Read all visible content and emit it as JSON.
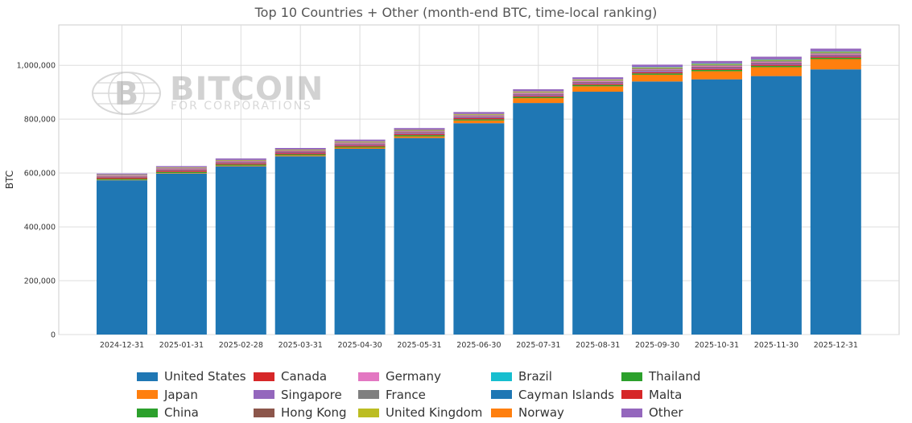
{
  "chart_data": {
    "type": "bar",
    "stacked": true,
    "title": "Top 10 Countries + Other (month-end BTC, time-local ranking)",
    "ylabel": "BTC",
    "xlabel": "",
    "ylim": [
      0,
      1150000
    ],
    "yticks": [
      0,
      200000,
      400000,
      600000,
      800000,
      1000000
    ],
    "ytick_labels": [
      "0",
      "200,000",
      "400,000",
      "600,000",
      "800,000",
      "1,000,000"
    ],
    "grid": true,
    "legend_position": "bottom",
    "categories": [
      "2024-12-31",
      "2025-01-31",
      "2025-02-28",
      "2025-03-31",
      "2025-04-30",
      "2025-05-31",
      "2025-06-30",
      "2025-07-31",
      "2025-08-31",
      "2025-09-30",
      "2025-10-31",
      "2025-11-30",
      "2025-12-31"
    ],
    "series": [
      {
        "name": "United States",
        "color": "#1f77b4",
        "values": [
          573000,
          598000,
          625000,
          662000,
          690000,
          730000,
          785000,
          860000,
          902000,
          940000,
          948000,
          960000,
          985000
        ]
      },
      {
        "name": "Japan",
        "color": "#ff7f0e",
        "values": [
          1500,
          2000,
          2500,
          3500,
          4500,
          6000,
          10000,
          18000,
          20000,
          25000,
          30000,
          33000,
          38000
        ]
      },
      {
        "name": "China",
        "color": "#2ca02c",
        "values": [
          4000,
          4000,
          4000,
          4000,
          4000,
          4500,
          4500,
          4500,
          5000,
          5000,
          5000,
          5000,
          5000
        ]
      },
      {
        "name": "Canada",
        "color": "#d62728",
        "values": [
          4000,
          4000,
          4000,
          4000,
          4000,
          4000,
          4000,
          4000,
          4000,
          4000,
          4000,
          4000,
          4000
        ]
      },
      {
        "name": "Singapore",
        "color": "#9467bd",
        "values": [
          2000,
          2500,
          2500,
          3000,
          3500,
          4000,
          4000,
          4500,
          4500,
          5000,
          5000,
          5000,
          5000
        ]
      },
      {
        "name": "Hong Kong",
        "color": "#8c564b",
        "values": [
          3000,
          3000,
          3000,
          3000,
          3000,
          3000,
          3000,
          3000,
          3000,
          3000,
          3000,
          3000,
          3000
        ]
      },
      {
        "name": "Germany",
        "color": "#e377c2",
        "values": [
          3000,
          3000,
          3000,
          3000,
          3000,
          3000,
          3000,
          3000,
          3000,
          3000,
          3000,
          3000,
          3000
        ]
      },
      {
        "name": "France",
        "color": "#7f7f7f",
        "values": [
          2000,
          2000,
          2500,
          2500,
          3000,
          3000,
          3000,
          3000,
          3000,
          4000,
          4000,
          4000,
          4000
        ]
      },
      {
        "name": "United Kingdom",
        "color": "#bcbd22",
        "values": [
          1500,
          2000,
          2000,
          2000,
          2500,
          2500,
          2500,
          3000,
          3000,
          3000,
          3000,
          3000,
          3000
        ]
      },
      {
        "name": "Brazil",
        "color": "#17becf",
        "values": [
          0,
          0,
          0,
          0,
          0,
          0,
          0,
          0,
          0,
          1500,
          2000,
          2000,
          2000
        ]
      },
      {
        "name": "Cayman Islands",
        "color": "#1f77b4",
        "values": [
          0,
          0,
          0,
          0,
          0,
          0,
          0,
          0,
          0,
          0,
          0,
          0,
          0
        ]
      },
      {
        "name": "Norway",
        "color": "#ff7f0e",
        "values": [
          0,
          0,
          0,
          0,
          0,
          0,
          0,
          0,
          0,
          0,
          0,
          0,
          0
        ]
      },
      {
        "name": "Thailand",
        "color": "#2ca02c",
        "values": [
          0,
          0,
          0,
          0,
          0,
          0,
          0,
          0,
          0,
          0,
          0,
          0,
          0
        ]
      },
      {
        "name": "Malta",
        "color": "#d62728",
        "values": [
          0,
          0,
          0,
          0,
          0,
          0,
          0,
          0,
          0,
          0,
          0,
          0,
          0
        ]
      },
      {
        "name": "Other",
        "color": "#9467bd",
        "values": [
          4000,
          5000,
          5500,
          6000,
          6500,
          7000,
          7500,
          8000,
          8000,
          9000,
          9000,
          10000,
          10000
        ]
      }
    ]
  },
  "watermark": {
    "main": "BITCOIN",
    "sub": "FOR CORPORATIONS"
  }
}
